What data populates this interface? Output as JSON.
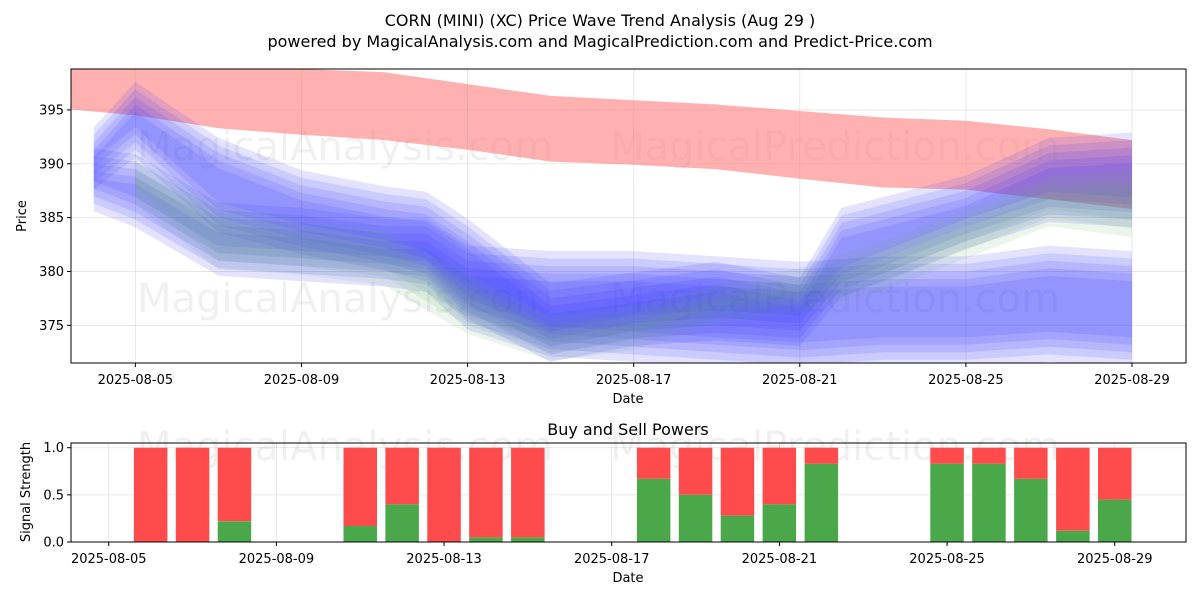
{
  "title": "CORN (MINI) (XC) Price Wave Trend Analysis (Aug 29 )",
  "subtitle": "powered by MagicalAnalysis.com and MagicalPrediction.com and Predict-Price.com",
  "watermarks": [
    "MagicalAnalysis.com",
    "MagicalPrediction.com"
  ],
  "colors": {
    "red_band": "#ff7f7f",
    "blue_band": "#3b3bff",
    "green_band": "#5fae5f",
    "buy": "#4aa84a",
    "sell": "#ff4b4b",
    "grid": "#b0b0b0"
  },
  "chart_data": [
    {
      "type": "area",
      "title": "",
      "xlabel": "Date",
      "ylabel": "Price",
      "xlim": [
        "2025-08-03",
        "2025-08-30"
      ],
      "ylim": [
        371.5,
        398.8
      ],
      "xticks": [
        "2025-08-05",
        "2025-08-09",
        "2025-08-13",
        "2025-08-17",
        "2025-08-21",
        "2025-08-25",
        "2025-08-29"
      ],
      "yticks": [
        375,
        380,
        385,
        390,
        395
      ],
      "grid": true,
      "series": [
        {
          "color": "red",
          "x": [
            "2025-08-03",
            "2025-08-05",
            "2025-08-07",
            "2025-08-09",
            "2025-08-11",
            "2025-08-13",
            "2025-08-15",
            "2025-08-17",
            "2025-08-19",
            "2025-08-21",
            "2025-08-23",
            "2025-08-25",
            "2025-08-27",
            "2025-08-29"
          ],
          "upper": [
            399.5,
            399.3,
            399.0,
            398.8,
            398.5,
            397.4,
            396.3,
            395.9,
            395.5,
            394.9,
            394.3,
            394.0,
            393.2,
            392.2
          ],
          "lower": [
            395.2,
            394.5,
            393.3,
            392.7,
            392.2,
            391.3,
            390.2,
            389.9,
            389.5,
            388.6,
            387.8,
            387.6,
            386.7,
            385.8
          ]
        },
        {
          "color": "blue-high",
          "x": [
            "2025-08-04",
            "2025-08-05",
            "2025-08-07",
            "2025-08-09",
            "2025-08-11",
            "2025-08-12",
            "2025-08-13",
            "2025-08-15",
            "2025-08-17",
            "2025-08-19",
            "2025-08-21",
            "2025-08-22",
            "2025-08-25",
            "2025-08-27",
            "2025-08-29"
          ],
          "upper": [
            392,
            396.2,
            391,
            388,
            386.5,
            386,
            383.5,
            377.5,
            378.5,
            379.5,
            378,
            384.5,
            387.5,
            391,
            391.5
          ],
          "lower": [
            389,
            392,
            385,
            383,
            381.5,
            380.5,
            377,
            373,
            374.5,
            375,
            374.5,
            379,
            383.5,
            386,
            385.5
          ]
        },
        {
          "color": "blue-low",
          "x": [
            "2025-08-04",
            "2025-08-05",
            "2025-08-07",
            "2025-08-09",
            "2025-08-11",
            "2025-08-12",
            "2025-08-13",
            "2025-08-15",
            "2025-08-17",
            "2025-08-19",
            "2025-08-21",
            "2025-08-23",
            "2025-08-25",
            "2025-08-27",
            "2025-08-29"
          ],
          "upper": [
            390,
            389.5,
            385,
            384.5,
            383.5,
            383.5,
            381,
            380.5,
            380.5,
            380,
            379.5,
            380,
            380,
            381,
            380.5
          ],
          "lower": [
            387,
            385.5,
            381,
            380.5,
            380,
            379.5,
            376,
            373.5,
            373,
            372.5,
            372,
            372.5,
            372.5,
            373,
            372.5
          ]
        },
        {
          "color": "green",
          "x": [
            "2025-08-05",
            "2025-08-07",
            "2025-08-09",
            "2025-08-11",
            "2025-08-13",
            "2025-08-15",
            "2025-08-17",
            "2025-08-19",
            "2025-08-21",
            "2025-08-23",
            "2025-08-25",
            "2025-08-27",
            "2025-08-29"
          ],
          "upper": [
            389.5,
            385.5,
            384,
            383,
            379,
            375,
            376,
            378,
            379.5,
            382,
            385,
            388,
            388.5
          ],
          "lower": [
            387,
            381,
            380.5,
            379.5,
            375,
            372.5,
            373.5,
            376,
            377,
            379,
            382,
            385,
            384
          ]
        }
      ]
    },
    {
      "type": "bar",
      "title": "Buy and Sell Powers",
      "xlabel": "Date",
      "ylabel": "Signal Strength",
      "ylim": [
        0,
        1.05
      ],
      "yticks": [
        0.0,
        0.5,
        1.0
      ],
      "xticks": [
        "2025-08-05",
        "2025-08-09",
        "2025-08-13",
        "2025-08-17",
        "2025-08-21",
        "2025-08-25",
        "2025-08-29"
      ],
      "x": [
        "2025-08-06",
        "2025-08-07",
        "2025-08-08",
        "2025-08-11",
        "2025-08-12",
        "2025-08-13",
        "2025-08-14",
        "2025-08-15",
        "2025-08-18",
        "2025-08-19",
        "2025-08-20",
        "2025-08-21",
        "2025-08-22",
        "2025-08-25",
        "2025-08-26",
        "2025-08-27",
        "2025-08-28",
        "2025-08-29"
      ],
      "series": [
        {
          "name": "Buy",
          "values": [
            0,
            0,
            0.22,
            0.17,
            0.4,
            0,
            0.05,
            0.05,
            0.67,
            0.5,
            0.28,
            0.4,
            0.83,
            0.83,
            0.83,
            0.67,
            0.12,
            0.45
          ]
        },
        {
          "name": "Sell",
          "values": [
            1,
            1,
            0.78,
            0.83,
            0.6,
            1,
            0.95,
            0.95,
            0.33,
            0.5,
            0.72,
            0.6,
            0.17,
            0.17,
            0.17,
            0.33,
            0.88,
            0.55
          ]
        }
      ]
    }
  ]
}
